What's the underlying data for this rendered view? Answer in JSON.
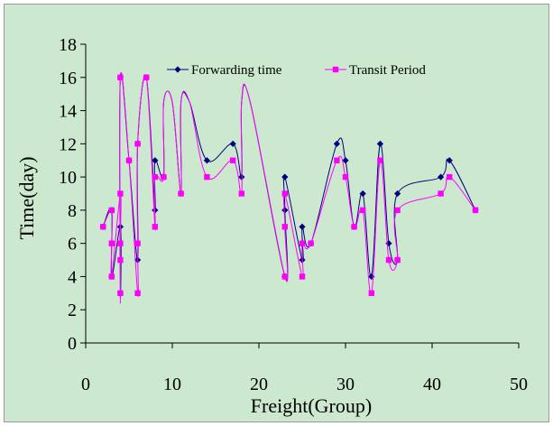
{
  "chart_data": {
    "type": "line",
    "title": "",
    "xlabel": "Freight(Group)",
    "ylabel": "Time(day)",
    "xlim": [
      0,
      50
    ],
    "ylim": [
      0,
      18
    ],
    "xticks": [
      0,
      10,
      20,
      30,
      40,
      50
    ],
    "yticks": [
      0,
      2,
      4,
      6,
      8,
      10,
      12,
      14,
      16,
      18
    ],
    "grid": false,
    "legend_position": "top-right",
    "background": "#cce8cf",
    "series": [
      {
        "name": "Forwarding time",
        "color": "#000080",
        "marker": "diamond",
        "points": [
          [
            2,
            7
          ],
          [
            3,
            8
          ],
          [
            3,
            4
          ],
          [
            4,
            7
          ],
          [
            4,
            3
          ],
          [
            4,
            16
          ],
          [
            5,
            11
          ],
          [
            6,
            5
          ],
          [
            6,
            12
          ],
          [
            7,
            16
          ],
          [
            8,
            8
          ],
          [
            8,
            11
          ],
          [
            9,
            10
          ],
          [
            9,
            14.5
          ],
          [
            10,
            14.5
          ],
          [
            11,
            9
          ],
          [
            11,
            14.5
          ],
          [
            12,
            14.5
          ],
          [
            14,
            11
          ],
          [
            17,
            12
          ],
          [
            18,
            10
          ],
          [
            18,
            14.5
          ],
          [
            19,
            14.5
          ],
          [
            23,
            4
          ],
          [
            23,
            8
          ],
          [
            23,
            10
          ],
          [
            25,
            5
          ],
          [
            25,
            7
          ],
          [
            26,
            6
          ],
          [
            29,
            12
          ],
          [
            30,
            11
          ],
          [
            31,
            7
          ],
          [
            32,
            9
          ],
          [
            33,
            4
          ],
          [
            34,
            12
          ],
          [
            35,
            6
          ],
          [
            36,
            5
          ],
          [
            36,
            9
          ],
          [
            41,
            10
          ],
          [
            42,
            11
          ],
          [
            45,
            8
          ]
        ]
      },
      {
        "name": "Transit Period",
        "color": "#ff00ff",
        "marker": "square",
        "points": [
          [
            2,
            7
          ],
          [
            3,
            8
          ],
          [
            3,
            6
          ],
          [
            3,
            4
          ],
          [
            4,
            9
          ],
          [
            4,
            6
          ],
          [
            4,
            5
          ],
          [
            4,
            3
          ],
          [
            4,
            16
          ],
          [
            5,
            11
          ],
          [
            6,
            3
          ],
          [
            6,
            6
          ],
          [
            6,
            12
          ],
          [
            7,
            16
          ],
          [
            8,
            7
          ],
          [
            8,
            10
          ],
          [
            9,
            10
          ],
          [
            9,
            14.5
          ],
          [
            10,
            14.5
          ],
          [
            11,
            9
          ],
          [
            11,
            14.5
          ],
          [
            12,
            14.5
          ],
          [
            14,
            10
          ],
          [
            17,
            11
          ],
          [
            18,
            9
          ],
          [
            18,
            14.5
          ],
          [
            19,
            14.5
          ],
          [
            23,
            4
          ],
          [
            23,
            7
          ],
          [
            23,
            9
          ],
          [
            25,
            4
          ],
          [
            25,
            6
          ],
          [
            26,
            6
          ],
          [
            29,
            11
          ],
          [
            30,
            10
          ],
          [
            31,
            7
          ],
          [
            32,
            8
          ],
          [
            33,
            3
          ],
          [
            34,
            11
          ],
          [
            35,
            5
          ],
          [
            36,
            5
          ],
          [
            36,
            8
          ],
          [
            41,
            9
          ],
          [
            42,
            10
          ],
          [
            45,
            8
          ]
        ]
      }
    ]
  }
}
